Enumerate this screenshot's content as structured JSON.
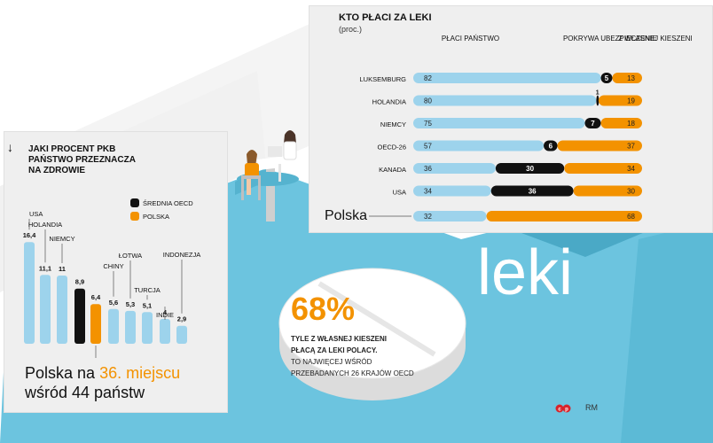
{
  "colors": {
    "blue": "#9dd3ec",
    "orange": "#f39200",
    "black": "#111111",
    "floor": "#6cc4df",
    "wall": "#f4f4f4",
    "accent": "#f39200",
    "logo_red": "#d8232a"
  },
  "payers_chart": {
    "title": "KTO PŁACI ZA LEKI",
    "subtitle": "(proc.)",
    "legend": [
      "PŁACI PAŃSTWO",
      "POKRYWA UBEZPIECZENIE",
      "Z WŁASNEJ KIESZENI"
    ]
  },
  "pkb_chart": {
    "title_lines": [
      "JAKI PROCENT PKB",
      "PAŃSTWO PRZEZNACZA",
      "NA ZDROWIE"
    ],
    "legend": [
      "ŚREDNIA OECD",
      "POLSKA"
    ],
    "rank_line1_prefix": "Polska na ",
    "rank_line1_accent": "36. miejscu",
    "rank_line2": "wśród 44 państw"
  },
  "chart_data": [
    {
      "type": "bar",
      "title": "KTO PŁACI ZA LEKI",
      "subtitle": "(proc.)",
      "stacked": true,
      "orientation": "horizontal",
      "categories": [
        "LUKSEMBURG",
        "HOLANDIA",
        "NIEMCY",
        "OECD-26",
        "KANADA",
        "USA",
        "Polska"
      ],
      "series": [
        {
          "name": "PŁACI PAŃSTWO",
          "color": "#9dd3ec",
          "values": [
            82,
            80,
            75,
            57,
            36,
            34,
            32
          ]
        },
        {
          "name": "POKRYWA UBEZPIECZENIE",
          "color": "#111111",
          "values": [
            5,
            1,
            7,
            6,
            30,
            36,
            0
          ]
        },
        {
          "name": "Z WŁASNEJ KIESZENI",
          "color": "#f39200",
          "values": [
            13,
            19,
            18,
            37,
            34,
            30,
            68
          ]
        }
      ]
    },
    {
      "type": "bar",
      "title": "JAKI PROCENT PKB PAŃSTWO PRZEZNACZA NA ZDROWIE",
      "categories": [
        "USA",
        "HOLANDIA",
        "NIEMCY",
        "ŚREDNIA OECD",
        "POLSKA",
        "CHINY",
        "ŁOTWA",
        "TURCJA",
        "INDIE",
        "INDONEZJA"
      ],
      "values": [
        16.4,
        11.1,
        11,
        8.9,
        6.4,
        5.6,
        5.3,
        5.1,
        4,
        2.9
      ],
      "value_labels": [
        "16,4",
        "11,1",
        "11",
        "8,9",
        "6,4",
        "5,6",
        "5,3",
        "5,1",
        "4",
        "2,9"
      ],
      "category_labels": [
        "USA",
        "HOLANDIA",
        "NIEMCY",
        "",
        "",
        "CHINY",
        "ŁOTWA",
        "TURCJA",
        "INDIE",
        "INDONEZJA"
      ],
      "colors": [
        "#9dd3ec",
        "#9dd3ec",
        "#9dd3ec",
        "#111111",
        "#f39200",
        "#9dd3ec",
        "#9dd3ec",
        "#9dd3ec",
        "#9dd3ec",
        "#9dd3ec"
      ]
    }
  ],
  "big_word": "leki",
  "pill": {
    "percent": "68%",
    "lines_bold": [
      "TYLE Z WŁASNEJ KIESZENI",
      "PŁACĄ ZA LEKI POLACY."
    ],
    "lines_regular": [
      "TO NAJWIĘCEJ WŚRÓD",
      "PRZEBADANYCH 26 KRAJÓW OECD"
    ]
  },
  "credit": "RM"
}
